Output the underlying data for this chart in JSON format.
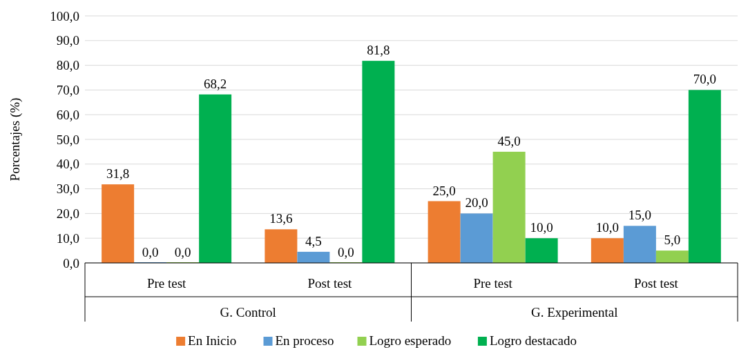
{
  "chart_data": {
    "type": "bar",
    "ylabel": "Porcentajes (%)",
    "categories": [
      "Pre test",
      "Post test",
      "Pre test",
      "Post test"
    ],
    "annotations": [
      "G. Control",
      "G. Experimental"
    ],
    "series": [
      {
        "name": "En Inicio",
        "color": "#ed7d31",
        "values": [
          31.8,
          13.6,
          25.0,
          10.0
        ],
        "value_labels": [
          "31,8",
          "13,6",
          "25,0",
          "10,0"
        ]
      },
      {
        "name": "En proceso",
        "color": "#5b9bd5",
        "values": [
          0.0,
          4.5,
          20.0,
          15.0
        ],
        "value_labels": [
          "0,0",
          "4,5",
          "20,0",
          "15,0"
        ]
      },
      {
        "name": "Logro esperado",
        "color": "#92d050",
        "values": [
          0.0,
          0.0,
          45.0,
          5.0
        ],
        "value_labels": [
          "0,0",
          "0,0",
          "45,0",
          "5,0"
        ]
      },
      {
        "name": "Logro destacado",
        "color": "#00b050",
        "values": [
          68.2,
          81.8,
          10.0,
          70.0
        ],
        "value_labels": [
          "68,2",
          "81,8",
          "10,0",
          "70,0"
        ]
      }
    ],
    "ylim": [
      0,
      100
    ],
    "yticks": [
      {
        "value": 0,
        "label": "0,0"
      },
      {
        "value": 10,
        "label": "10,0"
      },
      {
        "value": 20,
        "label": "20,0"
      },
      {
        "value": 30,
        "label": "30,0"
      },
      {
        "value": 40,
        "label": "40,0"
      },
      {
        "value": 50,
        "label": "50,0"
      },
      {
        "value": 60,
        "label": "60,0"
      },
      {
        "value": 70,
        "label": "70,0"
      },
      {
        "value": 80,
        "label": "80,0"
      },
      {
        "value": 90,
        "label": "90,0"
      },
      {
        "value": 100,
        "label": "100,0"
      }
    ],
    "grid": "y",
    "legend": "bottom"
  }
}
